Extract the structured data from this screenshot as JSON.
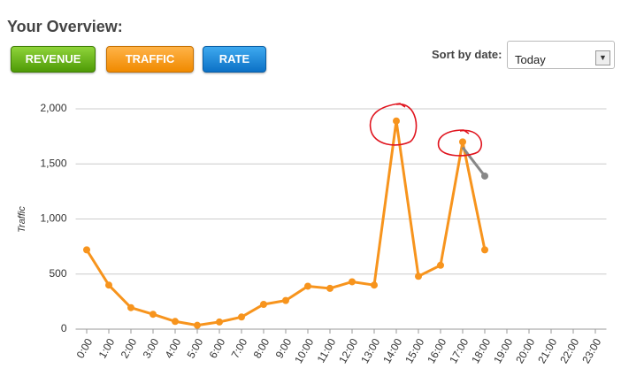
{
  "header": {
    "title": "Your Overview:",
    "buttons": [
      "REVENUE",
      "TRAFFIC",
      "RATE"
    ],
    "sort_label": "Sort by date:",
    "sort_value": "Today"
  },
  "chart_data": {
    "type": "line",
    "y_label": "Traffic",
    "categories": [
      "0:00",
      "1:00",
      "2:00",
      "3:00",
      "4:00",
      "5:00",
      "6:00",
      "7:00",
      "8:00",
      "9:00",
      "10:00",
      "11:00",
      "12:00",
      "13:00",
      "14:00",
      "15:00",
      "16:00",
      "17:00",
      "18:00",
      "19:00",
      "20:00",
      "21:00",
      "22:00",
      "23:00"
    ],
    "series": [
      {
        "color": "#f7941d",
        "values": [
          720,
          400,
          195,
          135,
          70,
          35,
          65,
          110,
          225,
          260,
          390,
          370,
          430,
          400,
          1890,
          480,
          580,
          1700,
          720,
          null,
          null,
          null,
          null,
          null
        ]
      },
      {
        "color": "#888888",
        "values": [
          null,
          null,
          null,
          null,
          null,
          null,
          null,
          null,
          null,
          null,
          null,
          null,
          null,
          null,
          null,
          null,
          null,
          1650,
          1390,
          null,
          null,
          null,
          null,
          null
        ]
      }
    ],
    "ylim": [
      0,
      2000
    ],
    "yticks": [
      0,
      500,
      {
        "value": 1000,
        "label": "1,000"
      },
      {
        "value": 1500,
        "label": "1,500"
      },
      {
        "value": 2000,
        "label": "2,000"
      }
    ],
    "grid": true
  }
}
